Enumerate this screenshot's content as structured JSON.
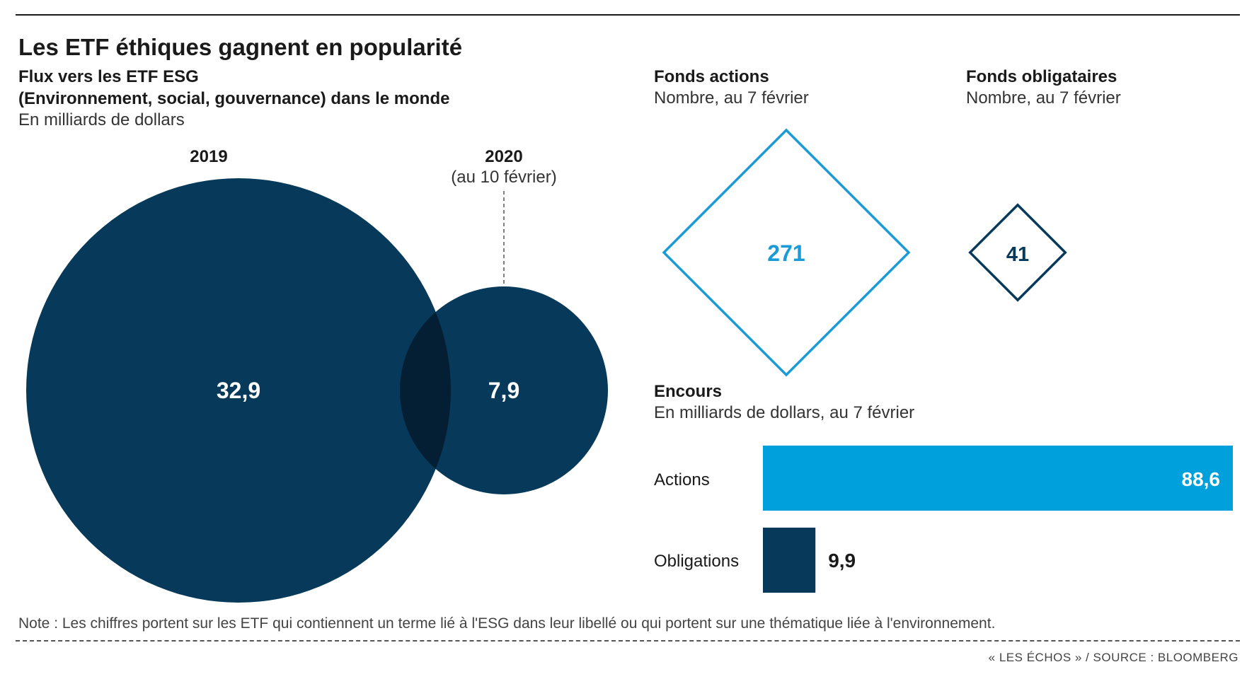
{
  "header": {
    "title": "Les ETF éthiques gagnent en popularité"
  },
  "chart_data": [
    {
      "type": "bubble",
      "title": "Flux vers les ETF ESG",
      "subtitle": "(Environnement, social, gouvernance) dans le monde",
      "unit": "En milliards de dollars",
      "categories": [
        "2019",
        "2020"
      ],
      "category_notes": [
        "",
        "(au 10 février)"
      ],
      "values": [
        32.9,
        7.9
      ],
      "value_labels": [
        "32,9",
        "7,9"
      ],
      "colors": {
        "fill": "#073a5a",
        "overlap": "#041f33"
      }
    },
    {
      "type": "diamond",
      "title": "Fonds actions",
      "subtitle": "Nombre, au 7 février",
      "value": 271,
      "value_label": "271",
      "color": "#1a9ad6"
    },
    {
      "type": "diamond",
      "title": "Fonds obligataires",
      "subtitle": "Nombre, au 7 février",
      "value": 41,
      "value_label": "41",
      "color": "#073a5a"
    },
    {
      "type": "bar",
      "title": "Encours",
      "subtitle": "En milliards de dollars, au 7 février",
      "categories": [
        "Actions",
        "Obligations"
      ],
      "values": [
        88.6,
        9.9
      ],
      "value_labels": [
        "88,6",
        "9,9"
      ],
      "colors": [
        "#00a0dc",
        "#073a5a"
      ]
    }
  ],
  "footer": {
    "note": "Note : Les chiffres portent sur les ETF qui contiennent un terme lié à l'ESG dans leur libellé ou qui portent sur une thématique liée à l'environnement.",
    "source": "« LES ÉCHOS » / SOURCE : BLOOMBERG"
  }
}
